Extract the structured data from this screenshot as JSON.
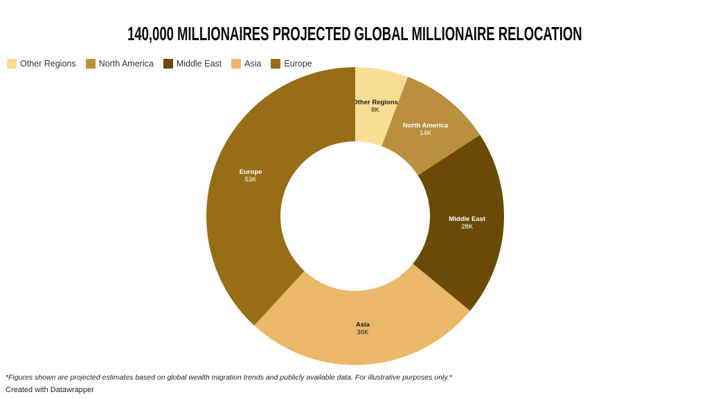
{
  "title": "140,000 MILLIONAIRES PROJECTED GLOBAL MILLIONAIRE RELOCATION",
  "chart_data": {
    "type": "pie",
    "subtype": "donut",
    "title": "140,000 MILLIONAIRES PROJECTED GLOBAL MILLIONAIRE RELOCATION",
    "legend_position": "top-left",
    "start_angle_deg": 0,
    "direction": "clockwise",
    "inner_radius_ratio": 0.5,
    "slices": [
      {
        "label": "Other Regions",
        "value": 8000,
        "display_value": "8K",
        "color": "#F8DE94",
        "label_color": "#1a1a1a"
      },
      {
        "label": "North America",
        "value": 14000,
        "display_value": "14K",
        "color": "#BA8F3E",
        "label_color": "#ffffff"
      },
      {
        "label": "Middle East",
        "value": 28000,
        "display_value": "28K",
        "color": "#6A4A06",
        "label_color": "#ffffff"
      },
      {
        "label": "Asia",
        "value": 36000,
        "display_value": "36K",
        "color": "#E9B969",
        "label_color": "#1a1a1a"
      },
      {
        "label": "Europe",
        "value": 53000,
        "display_value": "53K",
        "color": "#976D16",
        "label_color": "#ffffff"
      }
    ]
  },
  "footer": {
    "note": "*Figures shown are projected estimates based on global wealth migration trends and publicly available data. For illustrative purposes only.*",
    "credit": "Created with Datawrapper"
  }
}
